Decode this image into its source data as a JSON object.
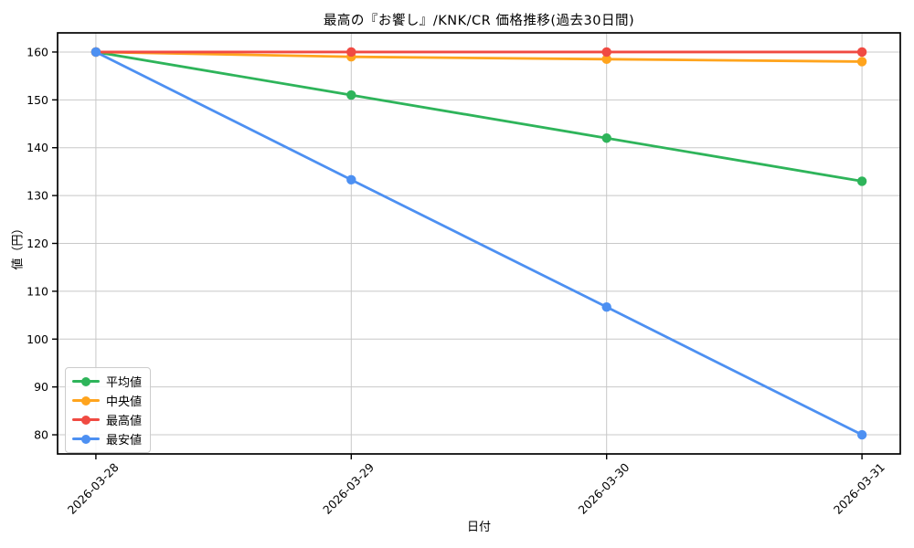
{
  "chart_data": {
    "type": "line",
    "title": "最高の『お饗し』/KNK/CR 価格推移(過去30日間)",
    "xlabel": "日付",
    "ylabel": "値（円）",
    "x_labels": [
      "2026-03-28",
      "2026-03-29",
      "2026-03-30",
      "2026-03-31"
    ],
    "series": [
      {
        "name": "平均値",
        "color": "#2eb45a",
        "values": [
          160,
          151,
          142,
          133
        ]
      },
      {
        "name": "中央値",
        "color": "#ffa41d",
        "values": [
          160,
          159,
          158.5,
          158
        ]
      },
      {
        "name": "最高値",
        "color": "#f04a42",
        "values": [
          160,
          160,
          160,
          160
        ]
      },
      {
        "name": "最安値",
        "color": "#4d90f2",
        "values": [
          160,
          133.3,
          106.7,
          80
        ]
      }
    ],
    "yticks": [
      80,
      90,
      100,
      110,
      120,
      130,
      140,
      150,
      160
    ],
    "ylim": [
      76,
      164
    ],
    "xlim": [
      -0.15,
      3.15
    ],
    "grid": true,
    "grid_color": "#c8c8c8",
    "spine_color": "#000000",
    "x_tick_rotation": 45,
    "legend_position": "lower-left"
  }
}
